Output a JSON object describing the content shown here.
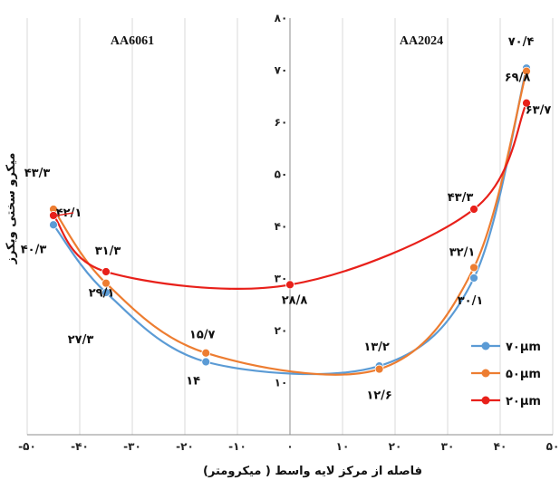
{
  "chart_data": {
    "type": "line",
    "xlabel": "فاصله از مرکز لایه واسط ( میکرومتر)",
    "ylabel": "میکرو سختی ویکرز",
    "xlim": [
      -50,
      50
    ],
    "ylim": [
      0,
      80
    ],
    "x_ticks": [
      -50,
      -40,
      -30,
      -20,
      -10,
      0,
      10,
      20,
      30,
      40,
      50
    ],
    "x_tick_labels": [
      "-۵۰",
      "-۴۰",
      "-۳۰",
      "-۲۰",
      "-۱۰",
      "۰",
      "۱۰",
      "۲۰",
      "۳۰",
      "۴۰",
      "۵۰"
    ],
    "y_ticks": [
      10,
      20,
      30,
      40,
      50,
      60,
      70,
      80
    ],
    "y_tick_labels": [
      "۱۰",
      "۲۰",
      "۳۰",
      "۴۰",
      "۵۰",
      "۶۰",
      "۷۰",
      "۸۰"
    ],
    "grid": "vertical",
    "legend_position": "bottom-right",
    "annotations": [
      {
        "text": "AA6061",
        "x": -30,
        "y": 75
      },
      {
        "text": "AA2024",
        "x": 25,
        "y": 75
      }
    ],
    "series": [
      {
        "name": "۷۰µm",
        "color": "#5b9bd5",
        "x": [
          -45,
          -35,
          -16,
          17,
          35,
          45
        ],
        "y": [
          40.3,
          27.3,
          14,
          13.2,
          30.1,
          70.4
        ]
      },
      {
        "name": "۵۰µm",
        "color": "#ed7d31",
        "x": [
          -45,
          -35,
          -16,
          17,
          35,
          45
        ],
        "y": [
          43.3,
          29.1,
          15.7,
          12.6,
          32.1,
          69.8
        ]
      },
      {
        "name": "۲۰µm",
        "color": "#e8201a",
        "x": [
          -45,
          -35,
          0,
          35,
          45
        ],
        "y": [
          42.1,
          31.3,
          28.8,
          43.3,
          63.7
        ]
      }
    ],
    "data_labels": [
      {
        "text": "۴۰/۳",
        "x": -45,
        "y": 40.3
      },
      {
        "text": "۲۷/۳",
        "x": -35,
        "y": 27.3
      },
      {
        "text": "۱۴",
        "x": -16,
        "y": 14
      },
      {
        "text": "۱۳/۲",
        "x": 17,
        "y": 13.2
      },
      {
        "text": "۳۰/۱",
        "x": 35,
        "y": 30.1
      },
      {
        "text": "۷۰/۴",
        "x": 45,
        "y": 70.4
      },
      {
        "text": "۴۳/۳",
        "x": -45,
        "y": 43.3
      },
      {
        "text": "۲۹/۱",
        "x": -35,
        "y": 29.1
      },
      {
        "text": "۱۵/۷",
        "x": -16,
        "y": 15.7
      },
      {
        "text": "۱۲/۶",
        "x": 17,
        "y": 12.6
      },
      {
        "text": "۳۲/۱",
        "x": 35,
        "y": 32.1
      },
      {
        "text": "۶۹/۸",
        "x": 45,
        "y": 69.8
      },
      {
        "text": "۴۲/۱",
        "x": -45,
        "y": 42.1
      },
      {
        "text": "۳۱/۳",
        "x": -35,
        "y": 31.3
      },
      {
        "text": "۲۸/۸",
        "x": 0,
        "y": 28.8
      },
      {
        "text": "۴۳/۳",
        "x": 35,
        "y": 43.3
      },
      {
        "text": "۶۳/۷",
        "x": 45,
        "y": 63.7
      }
    ]
  }
}
